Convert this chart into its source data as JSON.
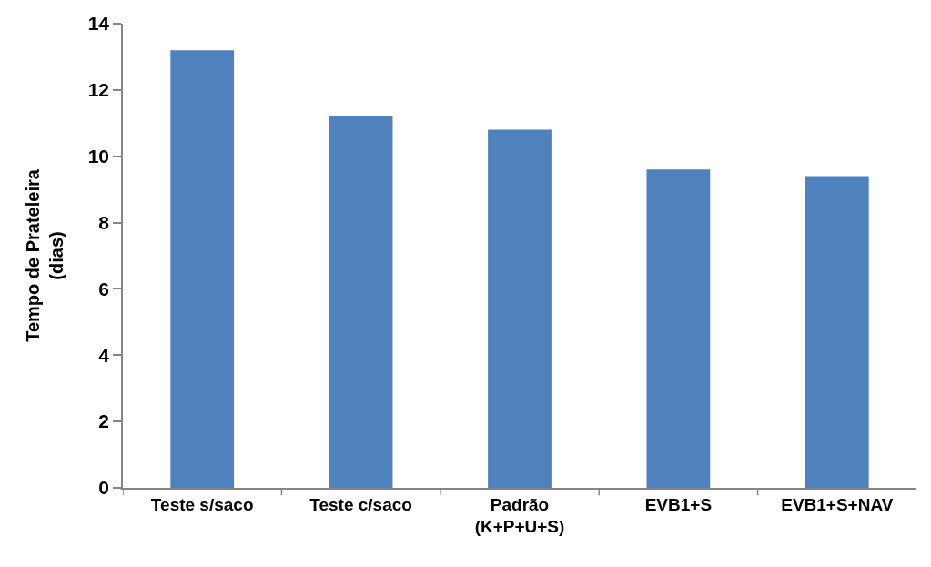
{
  "chart_data": {
    "type": "bar",
    "ylabel": "Tempo de Prateleira\n(dias)",
    "categories": [
      "Teste s/saco",
      "Teste c/saco",
      "Padrão\n(K+P+U+S)",
      "EVB1+S",
      "EVB1+S+NAV"
    ],
    "values": [
      13.2,
      11.2,
      10.8,
      9.6,
      9.4
    ],
    "color": "#4f81bd",
    "ylim": [
      0,
      14
    ],
    "yticks": [
      0,
      2,
      4,
      6,
      8,
      10,
      12,
      14
    ]
  }
}
